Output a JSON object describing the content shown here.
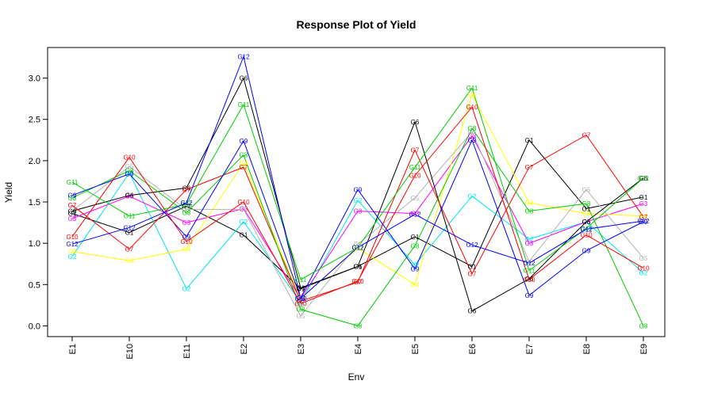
{
  "chart_data": {
    "type": "line",
    "title": "Response Plot of Yield",
    "xlabel": "Env",
    "ylabel": "Yield",
    "categories": [
      "E1",
      "E10",
      "E11",
      "E2",
      "E3",
      "E4",
      "E5",
      "E6",
      "E7",
      "E8",
      "E9"
    ],
    "yticks": [
      "0.0",
      "0.5",
      "1.0",
      "1.5",
      "2.0",
      "2.5",
      "3.0"
    ],
    "ylim": [
      -0.13,
      3.37
    ],
    "series": [
      {
        "name": "G1",
        "color": "#000000",
        "values": [
          1.36,
          1.13,
          1.45,
          1.1,
          0.45,
          0.72,
          1.08,
          0.72,
          2.25,
          1.42,
          1.56
        ]
      },
      {
        "name": "G2",
        "color": "#00e5ee",
        "values": [
          0.84,
          1.85,
          0.45,
          1.26,
          0.28,
          1.52,
          0.74,
          1.57,
          1.05,
          1.26,
          0.64
        ]
      },
      {
        "name": "G3",
        "color": "#ff00ff",
        "values": [
          1.3,
          1.57,
          1.25,
          1.42,
          0.33,
          1.39,
          1.36,
          2.3,
          1.0,
          1.26,
          1.48
        ]
      },
      {
        "name": "G4",
        "color": "#ffff00",
        "values": [
          0.9,
          0.79,
          0.93,
          1.97,
          0.33,
          0.94,
          0.5,
          2.8,
          1.49,
          1.36,
          1.33
        ]
      },
      {
        "name": "G5",
        "color": "#b3b3b3",
        "values": [
          1.39,
          1.93,
          1.41,
          1.41,
          0.12,
          0.99,
          1.55,
          2.35,
          0.78,
          1.65,
          0.82
        ]
      },
      {
        "name": "G6",
        "color": "#000000",
        "values": [
          1.39,
          1.58,
          1.67,
          3.0,
          0.46,
          0.72,
          2.47,
          0.18,
          0.57,
          1.26,
          1.79
        ]
      },
      {
        "name": "G7",
        "color": "#ff0000",
        "values": [
          1.46,
          0.93,
          1.65,
          1.92,
          0.3,
          0.53,
          2.13,
          0.63,
          1.92,
          2.31,
          1.32
        ]
      },
      {
        "name": "G8",
        "color": "#00cd00",
        "values": [
          1.55,
          1.88,
          1.37,
          2.07,
          0.2,
          0.0,
          0.97,
          2.39,
          1.39,
          1.48,
          0.0
        ]
      },
      {
        "name": "G9",
        "color": "#0000ff",
        "values": [
          1.58,
          1.84,
          1.08,
          2.24,
          0.34,
          1.65,
          0.69,
          2.25,
          0.37,
          0.91,
          1.26
        ]
      },
      {
        "name": "G10",
        "color": "#ff0000",
        "values": [
          1.08,
          2.04,
          1.02,
          1.5,
          0.27,
          0.54,
          1.82,
          2.65,
          0.56,
          1.1,
          0.7
        ]
      },
      {
        "name": "G11",
        "color": "#00cd00",
        "values": [
          1.74,
          1.33,
          1.47,
          2.68,
          0.56,
          0.95,
          1.92,
          2.88,
          0.67,
          1.18,
          1.79
        ]
      },
      {
        "name": "G12",
        "color": "#0000ff",
        "values": [
          0.99,
          1.19,
          1.49,
          3.26,
          0.33,
          0.95,
          1.35,
          0.98,
          0.76,
          1.17,
          1.27
        ]
      }
    ]
  }
}
